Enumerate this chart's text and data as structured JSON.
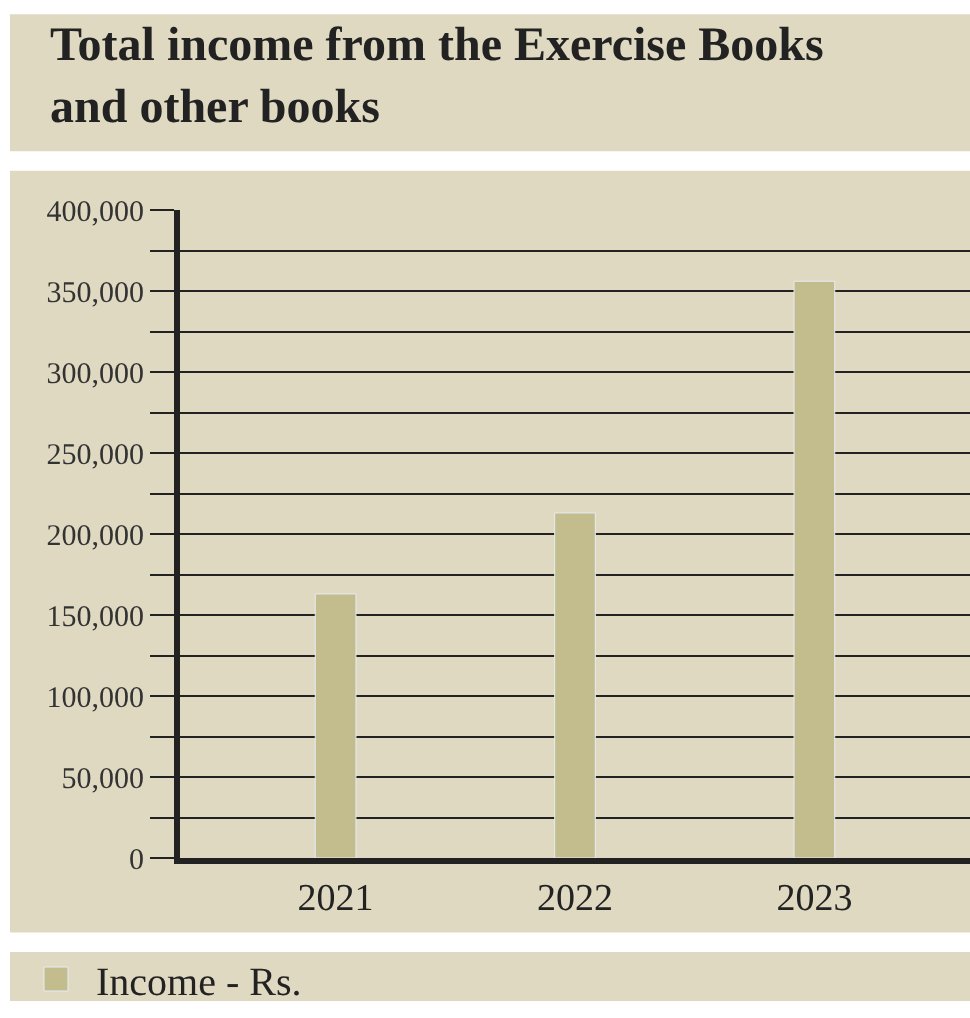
{
  "chart_data": {
    "type": "bar",
    "title": "Total income from the Exercise Books\nand other books",
    "categories": [
      "2021",
      "2022",
      "2023"
    ],
    "series": [
      {
        "name": "Income - Rs.",
        "color": "#c3bd8d",
        "values": [
          163000,
          213000,
          356000
        ]
      }
    ],
    "ylim": [
      0,
      400000
    ],
    "yticks": [
      0,
      {
        "value": 25000,
        "label": null
      },
      {
        "value": 50000,
        "label": "50,000"
      },
      {
        "value": 75000,
        "label": null
      },
      {
        "value": 100000,
        "label": "100,000"
      },
      {
        "value": 125000,
        "label": null
      },
      {
        "value": 150000,
        "label": "150,000"
      },
      {
        "value": 175000,
        "label": null
      },
      {
        "value": 200000,
        "label": "200,000"
      },
      {
        "value": 225000,
        "label": null
      },
      {
        "value": 250000,
        "label": "250,000"
      },
      {
        "value": 275000,
        "label": null
      },
      {
        "value": 300000,
        "label": "300,000"
      },
      {
        "value": 325000,
        "label": null
      },
      {
        "value": 350000,
        "label": "350,000"
      },
      {
        "value": 375000,
        "label": null
      },
      {
        "value": 400000,
        "label": "400,000"
      }
    ],
    "grid": "y",
    "legend": "bottom"
  }
}
